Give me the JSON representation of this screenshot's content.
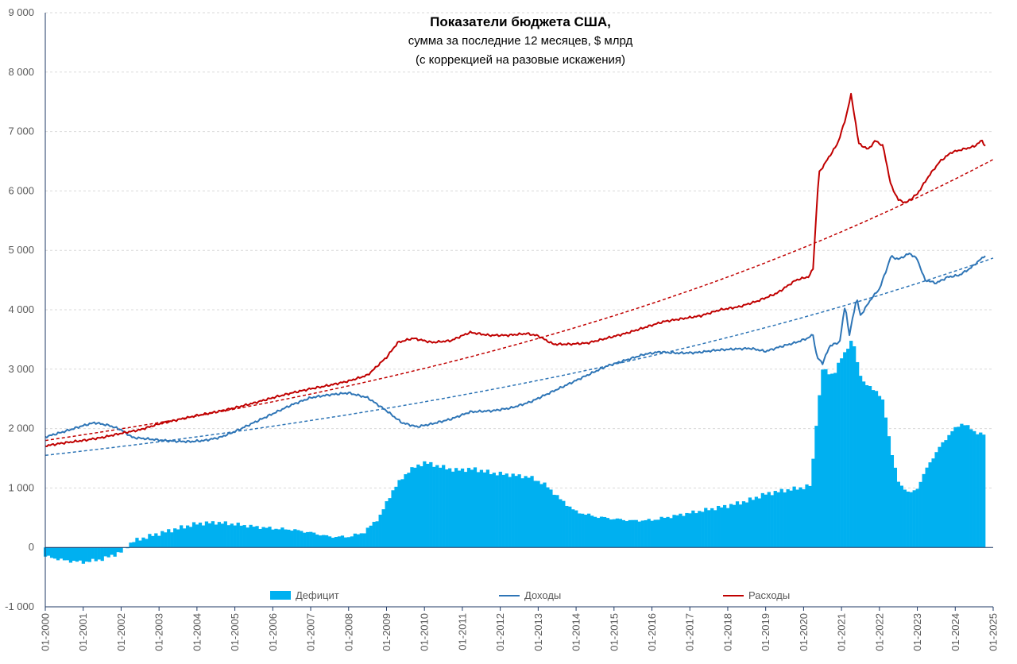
{
  "chart_data": {
    "type": "bar+line",
    "title": "Показатели бюджета США,",
    "subtitle_1": "сумма за последние 12 месяцев, $ млрд",
    "subtitle_2": "(с коррекцией на разовые искажения)",
    "ylim": [
      -1000,
      9000
    ],
    "y_ticks": [
      -1000,
      0,
      1000,
      2000,
      3000,
      4000,
      5000,
      6000,
      7000,
      8000,
      9000
    ],
    "y_tick_labels": [
      "-1 000",
      "0",
      "1 000",
      "2 000",
      "3 000",
      "4 000",
      "5 000",
      "6 000",
      "7 000",
      "8 000",
      "9 000"
    ],
    "x_tick_labels": [
      "01-2000",
      "01-2001",
      "01-2002",
      "01-2003",
      "01-2004",
      "01-2005",
      "01-2006",
      "01-2007",
      "01-2008",
      "01-2009",
      "01-2010",
      "01-2011",
      "01-2012",
      "01-2013",
      "01-2014",
      "01-2015",
      "01-2016",
      "01-2017",
      "01-2018",
      "01-2019",
      "01-2020",
      "01-2021",
      "01-2022",
      "01-2023",
      "01-2024",
      "01-2025"
    ],
    "x_start_year": 2000,
    "x_end_year": 2025,
    "legend": {
      "deficit": "Дефицит",
      "revenue": "Доходы",
      "spending": "Расходы"
    },
    "colors": {
      "deficit": "#00b0f0",
      "revenue": "#2e75b6",
      "spending": "#c00000",
      "revenue_trend": "#2e75b6",
      "spending_trend": "#c00000"
    },
    "series_keypoints": {
      "deficit": [
        [
          2000.0,
          -150
        ],
        [
          2000.5,
          -220
        ],
        [
          2001.0,
          -250
        ],
        [
          2001.5,
          -200
        ],
        [
          2002.0,
          -80
        ],
        [
          2002.3,
          100
        ],
        [
          2002.8,
          200
        ],
        [
          2003.5,
          320
        ],
        [
          2004.0,
          400
        ],
        [
          2004.5,
          420
        ],
        [
          2005.0,
          390
        ],
        [
          2005.5,
          350
        ],
        [
          2006.0,
          320
        ],
        [
          2006.5,
          300
        ],
        [
          2007.0,
          250
        ],
        [
          2007.5,
          180
        ],
        [
          2008.0,
          180
        ],
        [
          2008.4,
          250
        ],
        [
          2008.8,
          500
        ],
        [
          2009.2,
          1000
        ],
        [
          2009.6,
          1300
        ],
        [
          2010.0,
          1430
        ],
        [
          2010.3,
          1380
        ],
        [
          2010.8,
          1300
        ],
        [
          2011.3,
          1320
        ],
        [
          2011.8,
          1250
        ],
        [
          2012.3,
          1220
        ],
        [
          2012.8,
          1180
        ],
        [
          2013.2,
          1050
        ],
        [
          2013.6,
          800
        ],
        [
          2014.0,
          600
        ],
        [
          2014.5,
          520
        ],
        [
          2015.0,
          480
        ],
        [
          2015.5,
          450
        ],
        [
          2016.0,
          460
        ],
        [
          2016.5,
          520
        ],
        [
          2017.0,
          580
        ],
        [
          2017.5,
          640
        ],
        [
          2018.0,
          700
        ],
        [
          2018.5,
          780
        ],
        [
          2019.0,
          900
        ],
        [
          2019.5,
          960
        ],
        [
          2020.0,
          1010
        ],
        [
          2020.2,
          1050
        ],
        [
          2020.3,
          1900
        ],
        [
          2020.5,
          3000
        ],
        [
          2020.8,
          2900
        ],
        [
          2021.0,
          3200
        ],
        [
          2021.3,
          3500
        ],
        [
          2021.45,
          3000
        ],
        [
          2021.6,
          2750
        ],
        [
          2021.9,
          2650
        ],
        [
          2022.1,
          2450
        ],
        [
          2022.35,
          1500
        ],
        [
          2022.5,
          1100
        ],
        [
          2022.8,
          900
        ],
        [
          2023.0,
          1000
        ],
        [
          2023.3,
          1400
        ],
        [
          2023.6,
          1700
        ],
        [
          2023.9,
          1950
        ],
        [
          2024.2,
          2100
        ],
        [
          2024.5,
          1950
        ],
        [
          2024.75,
          1900
        ],
        [
          2024.8,
          1850
        ]
      ],
      "revenue": [
        [
          2000.0,
          1860
        ],
        [
          2000.5,
          1950
        ],
        [
          2001.0,
          2050
        ],
        [
          2001.3,
          2100
        ],
        [
          2001.7,
          2050
        ],
        [
          2002.0,
          1980
        ],
        [
          2002.3,
          1850
        ],
        [
          2002.8,
          1820
        ],
        [
          2003.3,
          1790
        ],
        [
          2003.8,
          1780
        ],
        [
          2004.2,
          1800
        ],
        [
          2004.6,
          1850
        ],
        [
          2005.0,
          1950
        ],
        [
          2005.5,
          2100
        ],
        [
          2006.0,
          2250
        ],
        [
          2006.5,
          2400
        ],
        [
          2007.0,
          2520
        ],
        [
          2007.5,
          2570
        ],
        [
          2008.0,
          2600
        ],
        [
          2008.5,
          2520
        ],
        [
          2009.0,
          2300
        ],
        [
          2009.4,
          2100
        ],
        [
          2009.8,
          2030
        ],
        [
          2010.2,
          2080
        ],
        [
          2010.7,
          2160
        ],
        [
          2011.2,
          2280
        ],
        [
          2011.8,
          2300
        ],
        [
          2012.3,
          2350
        ],
        [
          2012.8,
          2450
        ],
        [
          2013.3,
          2600
        ],
        [
          2013.8,
          2750
        ],
        [
          2014.3,
          2900
        ],
        [
          2014.8,
          3050
        ],
        [
          2015.3,
          3150
        ],
        [
          2015.8,
          3250
        ],
        [
          2016.2,
          3290
        ],
        [
          2016.7,
          3270
        ],
        [
          2017.2,
          3280
        ],
        [
          2017.7,
          3320
        ],
        [
          2018.2,
          3340
        ],
        [
          2018.6,
          3350
        ],
        [
          2019.0,
          3300
        ],
        [
          2019.4,
          3380
        ],
        [
          2019.8,
          3450
        ],
        [
          2020.1,
          3520
        ],
        [
          2020.25,
          3580
        ],
        [
          2020.35,
          3200
        ],
        [
          2020.5,
          3100
        ],
        [
          2020.7,
          3400
        ],
        [
          2020.95,
          3450
        ],
        [
          2021.1,
          4100
        ],
        [
          2021.2,
          3550
        ],
        [
          2021.4,
          4200
        ],
        [
          2021.5,
          3900
        ],
        [
          2021.8,
          4200
        ],
        [
          2022.0,
          4350
        ],
        [
          2022.2,
          4700
        ],
        [
          2022.3,
          4900
        ],
        [
          2022.5,
          4850
        ],
        [
          2022.8,
          4950
        ],
        [
          2023.0,
          4850
        ],
        [
          2023.2,
          4500
        ],
        [
          2023.5,
          4450
        ],
        [
          2023.8,
          4550
        ],
        [
          2024.1,
          4580
        ],
        [
          2024.4,
          4700
        ],
        [
          2024.8,
          4920
        ]
      ],
      "spending": [
        [
          2000.0,
          1710
        ],
        [
          2000.5,
          1760
        ],
        [
          2001.0,
          1800
        ],
        [
          2001.5,
          1850
        ],
        [
          2002.0,
          1920
        ],
        [
          2002.5,
          1980
        ],
        [
          2003.0,
          2080
        ],
        [
          2003.5,
          2150
        ],
        [
          2004.0,
          2220
        ],
        [
          2004.5,
          2280
        ],
        [
          2005.0,
          2350
        ],
        [
          2005.5,
          2430
        ],
        [
          2006.0,
          2520
        ],
        [
          2006.5,
          2600
        ],
        [
          2007.0,
          2670
        ],
        [
          2007.5,
          2730
        ],
        [
          2008.0,
          2800
        ],
        [
          2008.5,
          2900
        ],
        [
          2009.0,
          3200
        ],
        [
          2009.3,
          3450
        ],
        [
          2009.7,
          3520
        ],
        [
          2010.2,
          3450
        ],
        [
          2010.7,
          3480
        ],
        [
          2011.2,
          3620
        ],
        [
          2011.7,
          3570
        ],
        [
          2012.2,
          3570
        ],
        [
          2012.7,
          3600
        ],
        [
          2013.0,
          3560
        ],
        [
          2013.4,
          3420
        ],
        [
          2013.8,
          3420
        ],
        [
          2014.3,
          3440
        ],
        [
          2014.8,
          3520
        ],
        [
          2015.3,
          3600
        ],
        [
          2015.8,
          3700
        ],
        [
          2016.3,
          3800
        ],
        [
          2016.8,
          3850
        ],
        [
          2017.3,
          3900
        ],
        [
          2017.8,
          4000
        ],
        [
          2018.3,
          4050
        ],
        [
          2018.8,
          4150
        ],
        [
          2019.3,
          4280
        ],
        [
          2019.8,
          4500
        ],
        [
          2020.15,
          4560
        ],
        [
          2020.25,
          4700
        ],
        [
          2020.4,
          6300
        ],
        [
          2020.6,
          6500
        ],
        [
          2020.9,
          6800
        ],
        [
          2021.1,
          7200
        ],
        [
          2021.25,
          7620
        ],
        [
          2021.35,
          7250
        ],
        [
          2021.45,
          6800
        ],
        [
          2021.7,
          6700
        ],
        [
          2021.9,
          6850
        ],
        [
          2022.1,
          6750
        ],
        [
          2022.3,
          6100
        ],
        [
          2022.5,
          5850
        ],
        [
          2022.7,
          5800
        ],
        [
          2023.0,
          5950
        ],
        [
          2023.3,
          6250
        ],
        [
          2023.6,
          6500
        ],
        [
          2023.9,
          6650
        ],
        [
          2024.2,
          6700
        ],
        [
          2024.5,
          6750
        ],
        [
          2024.7,
          6850
        ],
        [
          2024.8,
          6750
        ]
      ]
    },
    "trend_lines": {
      "revenue_trend": {
        "start_year": 2000,
        "start_value": 1550,
        "end_year": 2025,
        "end_value": 4870,
        "shape": "exponential"
      },
      "spending_trend": {
        "start_year": 2000,
        "start_value": 1800,
        "end_year": 2025,
        "end_value": 6530,
        "shape": "exponential"
      }
    }
  }
}
